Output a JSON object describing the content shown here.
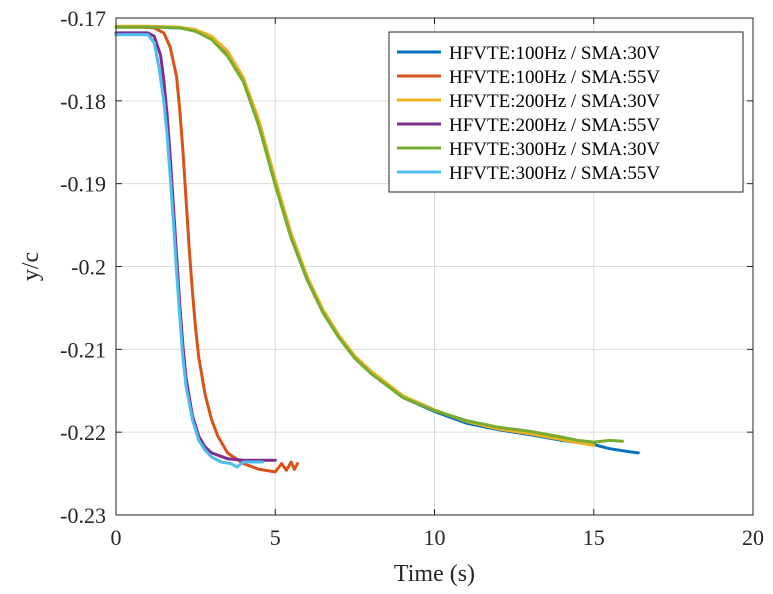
{
  "chart_data": {
    "type": "line",
    "title": "",
    "xlabel": "Time (s)",
    "ylabel": "y/c",
    "xlim": [
      0,
      20
    ],
    "ylim": [
      -0.23,
      -0.17
    ],
    "x_ticks": [
      0,
      5,
      10,
      15,
      20
    ],
    "x_tick_labels": [
      "0",
      "5",
      "10",
      "15",
      "20"
    ],
    "y_ticks": [
      -0.17,
      -0.18,
      -0.19,
      -0.2,
      -0.21,
      -0.22,
      -0.23
    ],
    "y_tick_labels": [
      "-0.17",
      "-0.18",
      "-0.19",
      "-0.2",
      "-0.21",
      "-0.22",
      "-0.23"
    ],
    "grid": true,
    "legend_position": "top-right",
    "series": [
      {
        "name": "HFVTE:100Hz / SMA:30V",
        "color": "#0072BD",
        "x": [
          0,
          1,
          2,
          2.5,
          3,
          3.5,
          4,
          4.5,
          5,
          5.5,
          6,
          6.5,
          7,
          7.5,
          8,
          9,
          10,
          11,
          12,
          13,
          14,
          15,
          15.5,
          16,
          16.4
        ],
        "y": [
          -0.1711,
          -0.1711,
          -0.1712,
          -0.1715,
          -0.1725,
          -0.1745,
          -0.1775,
          -0.183,
          -0.19,
          -0.1965,
          -0.2015,
          -0.2055,
          -0.2085,
          -0.211,
          -0.2128,
          -0.2158,
          -0.2175,
          -0.2189,
          -0.2197,
          -0.2203,
          -0.221,
          -0.2215,
          -0.222,
          -0.2223,
          -0.2225
        ]
      },
      {
        "name": "HFVTE:100Hz / SMA:55V",
        "color": "#D95319",
        "x": [
          0,
          0.8,
          1.2,
          1.5,
          1.7,
          1.9,
          2.0,
          2.1,
          2.2,
          2.3,
          2.4,
          2.5,
          2.6,
          2.8,
          3.0,
          3.2,
          3.5,
          4.0,
          4.5,
          5.0,
          5.2,
          5.35,
          5.5,
          5.6,
          5.7
        ],
        "y": [
          -0.1711,
          -0.1711,
          -0.1712,
          -0.1718,
          -0.1735,
          -0.177,
          -0.181,
          -0.186,
          -0.192,
          -0.198,
          -0.203,
          -0.2075,
          -0.211,
          -0.2155,
          -0.2185,
          -0.2205,
          -0.2225,
          -0.2238,
          -0.2245,
          -0.2248,
          -0.2238,
          -0.2246,
          -0.2236,
          -0.2245,
          -0.2238
        ]
      },
      {
        "name": "HFVTE:200Hz / SMA:30V",
        "color": "#EDB120",
        "x": [
          0,
          1,
          2,
          2.5,
          3,
          3.5,
          4,
          4.5,
          5,
          5.5,
          6,
          6.5,
          7,
          7.5,
          8,
          9,
          10,
          11,
          12,
          13,
          14,
          15
        ],
        "y": [
          -0.171,
          -0.171,
          -0.1711,
          -0.1714,
          -0.1722,
          -0.174,
          -0.1772,
          -0.1825,
          -0.1895,
          -0.196,
          -0.2012,
          -0.2052,
          -0.2083,
          -0.2108,
          -0.2126,
          -0.2156,
          -0.2173,
          -0.2187,
          -0.2196,
          -0.2202,
          -0.2209,
          -0.2216
        ]
      },
      {
        "name": "HFVTE:200Hz / SMA:55V",
        "color": "#7E2F8E",
        "x": [
          0,
          0.5,
          1.0,
          1.2,
          1.4,
          1.5,
          1.6,
          1.7,
          1.8,
          1.9,
          2.0,
          2.1,
          2.2,
          2.4,
          2.6,
          2.8,
          3.0,
          3.5,
          4.0,
          4.5,
          5.0
        ],
        "y": [
          -0.1718,
          -0.1718,
          -0.1718,
          -0.1722,
          -0.1745,
          -0.1775,
          -0.1815,
          -0.1865,
          -0.1925,
          -0.1985,
          -0.2045,
          -0.2095,
          -0.2135,
          -0.218,
          -0.2205,
          -0.2218,
          -0.2225,
          -0.2232,
          -0.2234,
          -0.2234,
          -0.2234
        ]
      },
      {
        "name": "HFVTE:300Hz / SMA:30V",
        "color": "#77AC30",
        "x": [
          0,
          1,
          2,
          2.5,
          3,
          3.5,
          4,
          4.5,
          5,
          5.5,
          6,
          6.5,
          7,
          7.5,
          8,
          9,
          10,
          11,
          12,
          13,
          14,
          14.5,
          15,
          15.5,
          15.9
        ],
        "y": [
          -0.1711,
          -0.1711,
          -0.1712,
          -0.1716,
          -0.1726,
          -0.1746,
          -0.1777,
          -0.1832,
          -0.1902,
          -0.1966,
          -0.2016,
          -0.2056,
          -0.2086,
          -0.2111,
          -0.2129,
          -0.2158,
          -0.2174,
          -0.2186,
          -0.2194,
          -0.2199,
          -0.2206,
          -0.221,
          -0.2212,
          -0.221,
          -0.2211
        ]
      },
      {
        "name": "HFVTE:300Hz / SMA:55V",
        "color": "#4DBEEE",
        "x": [
          0,
          0.5,
          1.0,
          1.2,
          1.35,
          1.5,
          1.6,
          1.7,
          1.8,
          1.9,
          2.0,
          2.1,
          2.2,
          2.4,
          2.6,
          2.8,
          3.0,
          3.3,
          3.6,
          3.8,
          4.0,
          4.3,
          4.6
        ],
        "y": [
          -0.172,
          -0.172,
          -0.172,
          -0.173,
          -0.176,
          -0.18,
          -0.184,
          -0.189,
          -0.1945,
          -0.2005,
          -0.206,
          -0.211,
          -0.2145,
          -0.2185,
          -0.221,
          -0.2222,
          -0.223,
          -0.2236,
          -0.2238,
          -0.2242,
          -0.2236,
          -0.2236,
          -0.2236
        ]
      }
    ]
  }
}
